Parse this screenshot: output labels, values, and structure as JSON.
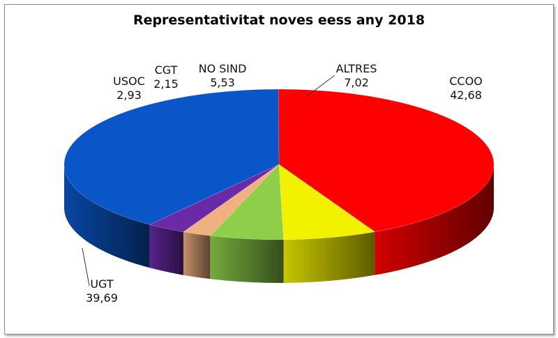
{
  "chart_data": {
    "type": "pie",
    "title": "Representativitat noves eess any 2018",
    "categories": [
      "CCOO",
      "UGT",
      "USOC",
      "CGT",
      "NO SIND",
      "ALTRES"
    ],
    "values": [
      42.68,
      39.69,
      2.93,
      2.15,
      5.53,
      7.02
    ],
    "value_labels": [
      "42,68",
      "39,69",
      "2,93",
      "2,15",
      "5,53",
      "7,02"
    ],
    "colors": [
      "#ff0000",
      "#0a56c8",
      "#6a2aa8",
      "#f0b080",
      "#8fce4a",
      "#f2f200"
    ],
    "style": "3d",
    "legend": "none"
  }
}
